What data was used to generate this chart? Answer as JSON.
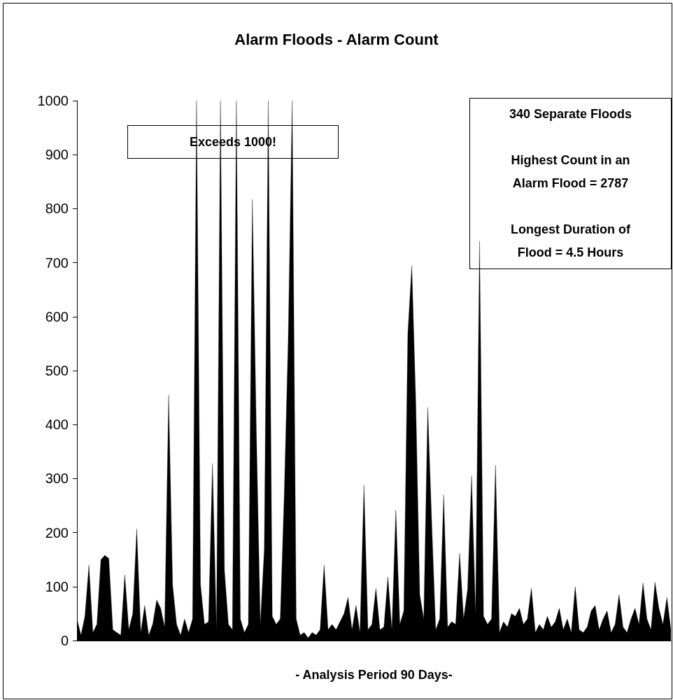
{
  "chart_data": {
    "type": "area",
    "title": "Alarm Floods - Alarm Count",
    "xlabel": "- Analysis Period 90 Days-",
    "categories": [
      null,
      null,
      null,
      null,
      null,
      null,
      null,
      null,
      null,
      null,
      null,
      null,
      null,
      null,
      null,
      null,
      null,
      null,
      null,
      null,
      null,
      null,
      null,
      null,
      null,
      null,
      null,
      null,
      null,
      null,
      null,
      null,
      null,
      null,
      null,
      null,
      null,
      null,
      null,
      null,
      null,
      null,
      null,
      null,
      null,
      null,
      null,
      null,
      null,
      null,
      null,
      null,
      null,
      null,
      null,
      null,
      null,
      null,
      null,
      null,
      null,
      null,
      null,
      null,
      null,
      null,
      null,
      null,
      null,
      null,
      null,
      null,
      null,
      null,
      null,
      null,
      null,
      null,
      null,
      null,
      null,
      null,
      null,
      null,
      null,
      null,
      null,
      null,
      null,
      null,
      null,
      null,
      null,
      null,
      null,
      null,
      null,
      null,
      null,
      null,
      null,
      null,
      null,
      null,
      null,
      null,
      null,
      null,
      null,
      null,
      null,
      null,
      null,
      null,
      null,
      null,
      null,
      null,
      null,
      null,
      null,
      null,
      null,
      null,
      null,
      null,
      null,
      null,
      null,
      null,
      null,
      null,
      null,
      null,
      null,
      null,
      null,
      null,
      null,
      null,
      null,
      null,
      null,
      null,
      null,
      null,
      null,
      null,
      null,
      null
    ],
    "series": [
      {
        "color": "#000000",
        "values": [
          40,
          10,
          45,
          140,
          15,
          30,
          150,
          158,
          152,
          20,
          15,
          10,
          122,
          20,
          50,
          207,
          15,
          65,
          10,
          30,
          75,
          60,
          25,
          455,
          103,
          30,
          10,
          40,
          15,
          40,
          1000,
          103,
          30,
          35,
          328,
          20,
          1000,
          130,
          30,
          20,
          1000,
          40,
          15,
          30,
          817,
          390,
          30,
          170,
          1000,
          45,
          30,
          40,
          270,
          558,
          1000,
          40,
          10,
          15,
          5,
          15,
          10,
          20,
          140,
          20,
          30,
          20,
          35,
          50,
          80,
          20,
          65,
          15,
          288,
          20,
          30,
          97,
          20,
          25,
          118,
          20,
          242,
          30,
          55,
          568,
          695,
          442,
          85,
          40,
          432,
          218,
          20,
          40,
          270,
          25,
          35,
          30,
          162,
          40,
          95,
          305,
          50,
          740,
          45,
          30,
          40,
          325,
          15,
          35,
          25,
          50,
          45,
          60,
          30,
          40,
          97,
          15,
          30,
          20,
          45,
          25,
          35,
          60,
          20,
          40,
          15,
          100,
          20,
          15,
          25,
          55,
          65,
          20,
          40,
          55,
          15,
          30,
          85,
          25,
          15,
          40,
          60,
          30,
          107,
          40,
          20,
          108,
          60,
          30,
          80,
          20
        ]
      }
    ],
    "ylim": [
      0,
      1000
    ],
    "yticks": [
      0,
      100,
      200,
      300,
      400,
      500,
      600,
      700,
      800,
      900,
      1000
    ],
    "grid": false,
    "annotations": [
      "Exceeds 1000!",
      "340 Separate Floods\n\nHighest Count in an\nAlarm Flood = 2787\n\nLongest Duration of\nFlood = 4.5 Hours"
    ]
  }
}
